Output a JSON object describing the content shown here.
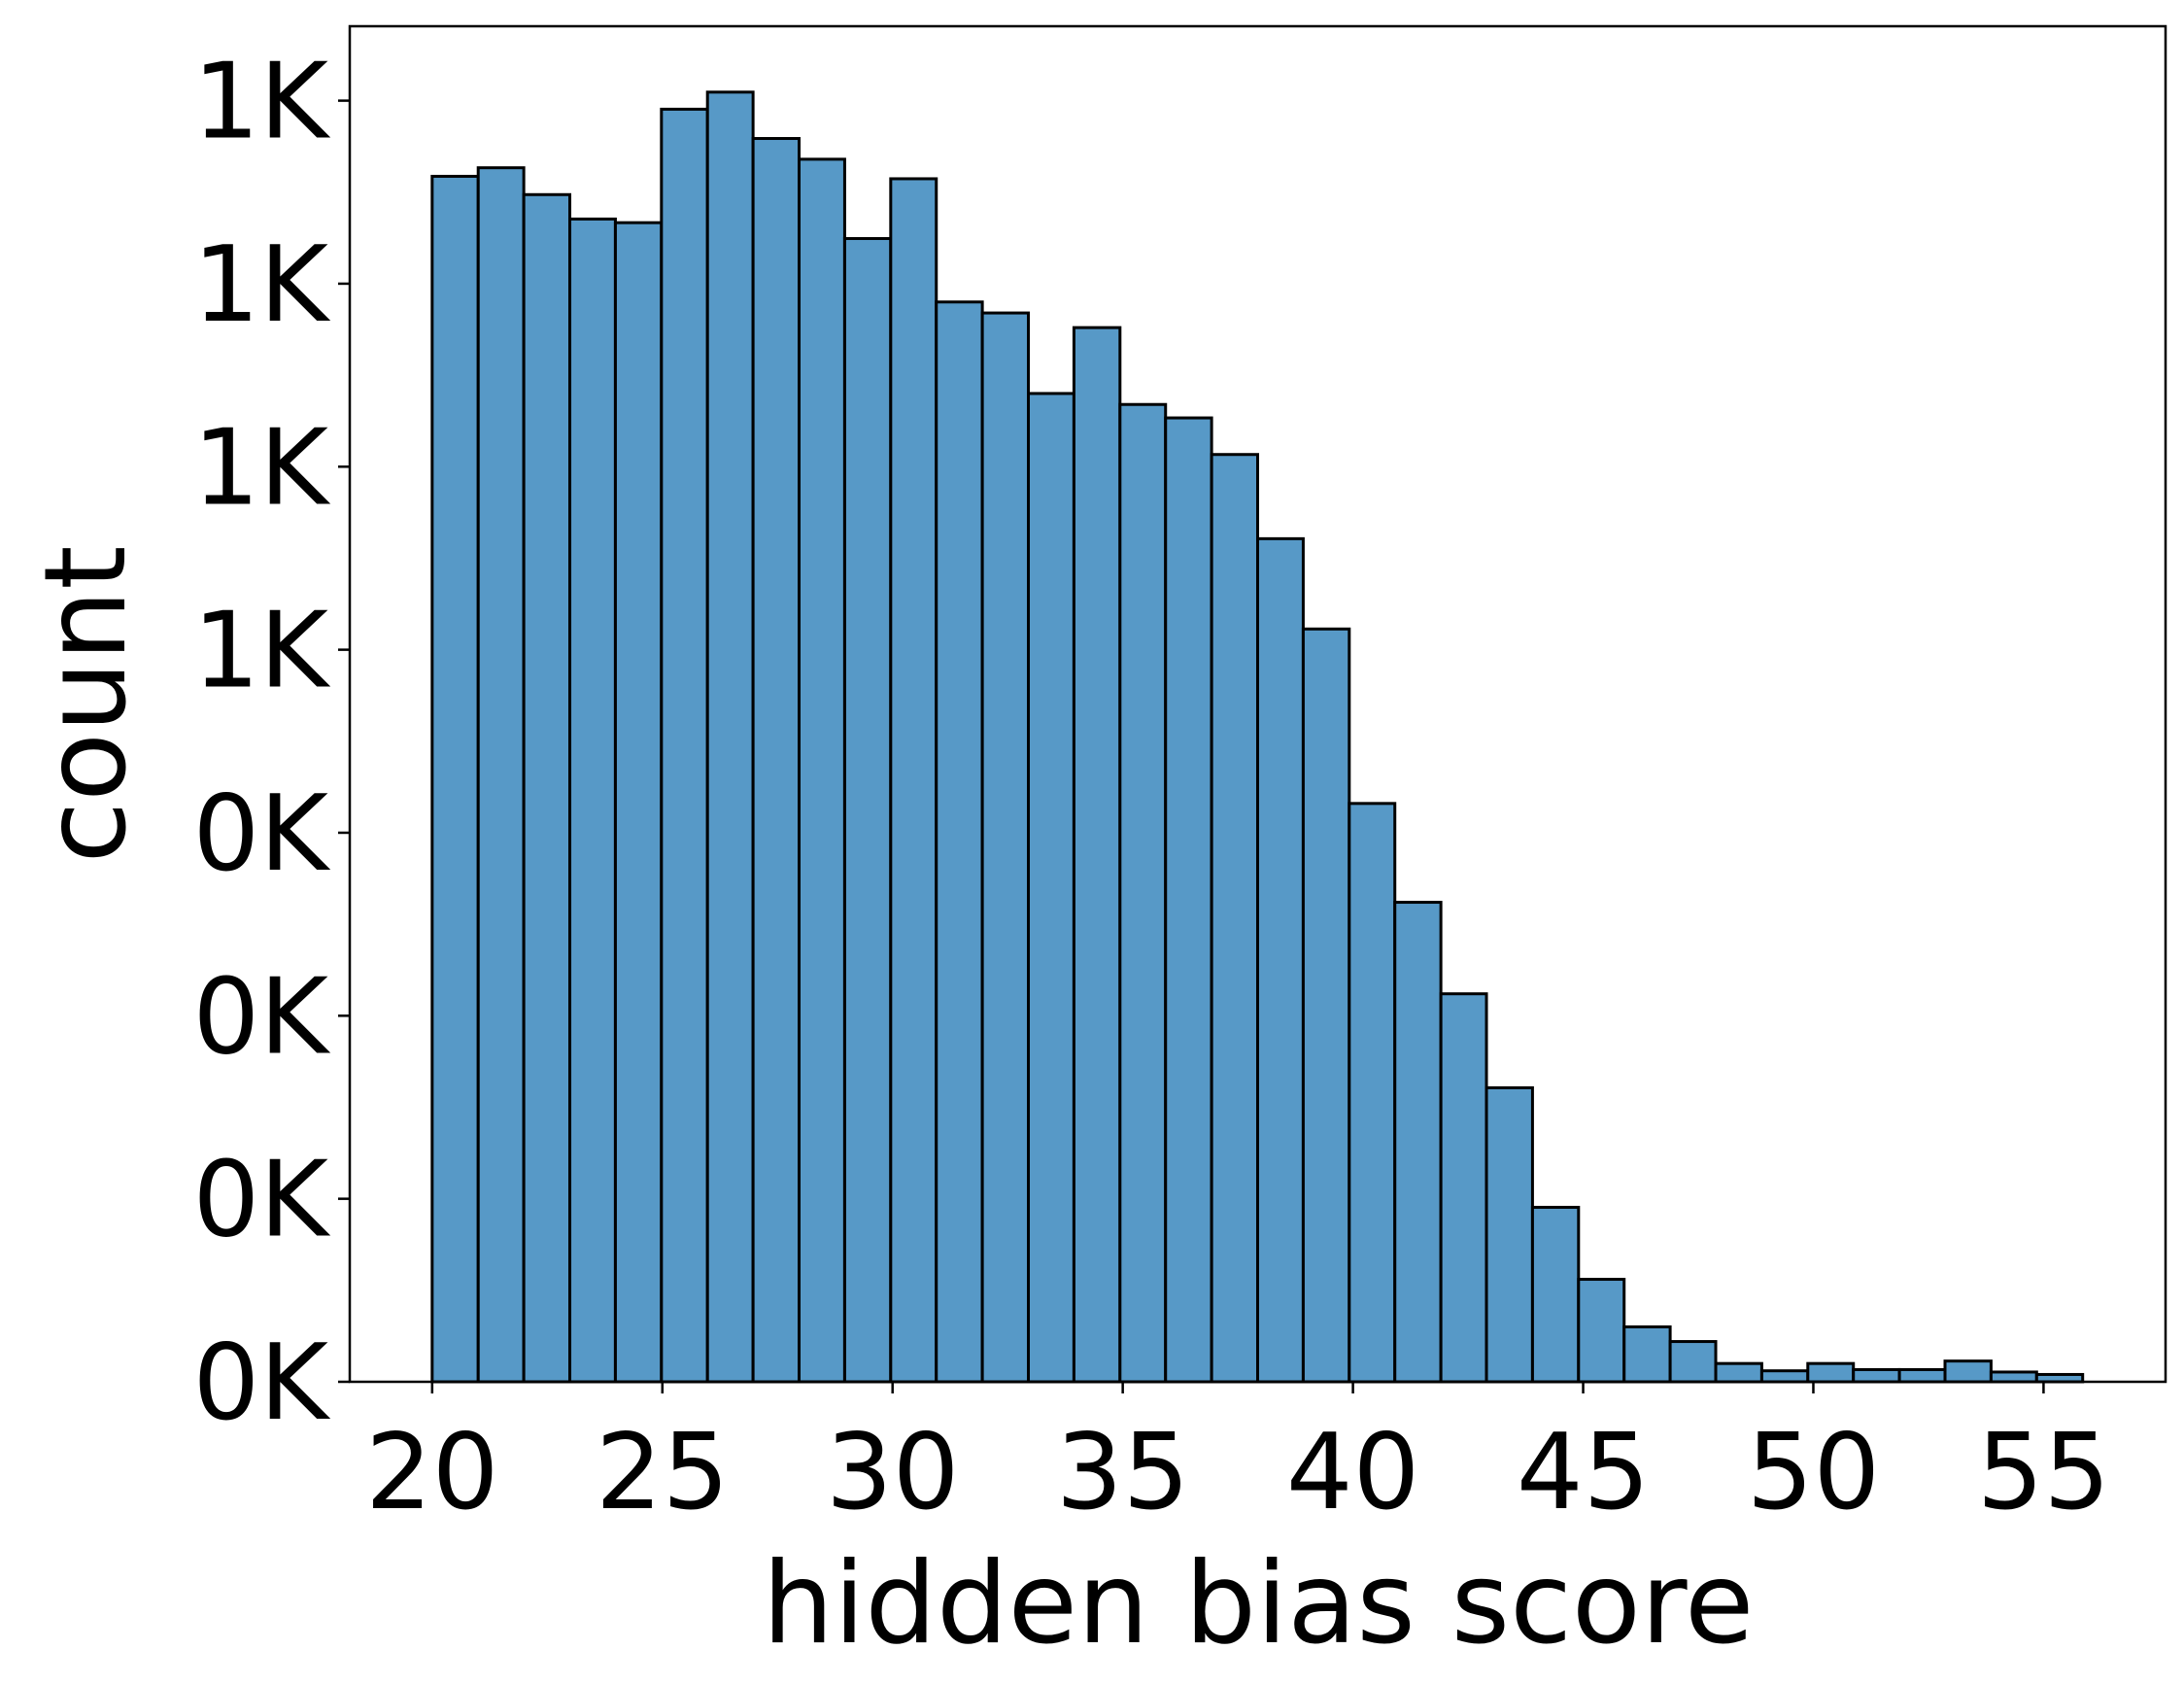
{
  "chart_data": {
    "type": "histogram",
    "xlabel": "hidden bias score",
    "ylabel": "count",
    "bins": [
      20.0,
      21.0,
      21.99,
      22.99,
      23.98,
      24.98,
      25.98,
      26.97,
      27.97,
      28.96,
      29.96,
      30.95,
      31.95,
      32.95,
      33.94,
      34.94,
      35.93,
      36.93,
      37.93,
      38.92,
      39.92,
      40.91,
      41.91,
      42.9,
      43.9,
      44.9,
      45.89,
      46.89,
      47.88,
      48.88,
      49.88,
      50.87,
      51.87,
      52.86,
      53.86,
      54.85,
      55.85
    ],
    "counts": [
      988,
      995,
      973,
      953,
      950,
      1043,
      1057,
      1019,
      1002,
      937,
      986,
      885,
      876,
      810,
      864,
      801,
      790,
      760,
      691,
      617,
      474,
      393,
      318,
      241,
      143,
      84,
      45,
      33,
      15,
      9,
      15,
      10,
      10,
      17,
      8,
      6
    ],
    "color": "#5799c7",
    "xlim": [
      18.21,
      57.65
    ],
    "ylim": [
      0,
      1111
    ],
    "xticks": [
      20,
      25,
      30,
      35,
      40,
      45,
      50,
      55
    ],
    "yticks": [
      {
        "value": 0,
        "label": "0K"
      },
      {
        "value": 150,
        "label": "0K"
      },
      {
        "value": 300,
        "label": "0K"
      },
      {
        "value": 450,
        "label": "0K"
      },
      {
        "value": 600,
        "label": "1K"
      },
      {
        "value": 750,
        "label": "1K"
      },
      {
        "value": 900,
        "label": "1K"
      },
      {
        "value": 1050,
        "label": "1K"
      }
    ]
  }
}
